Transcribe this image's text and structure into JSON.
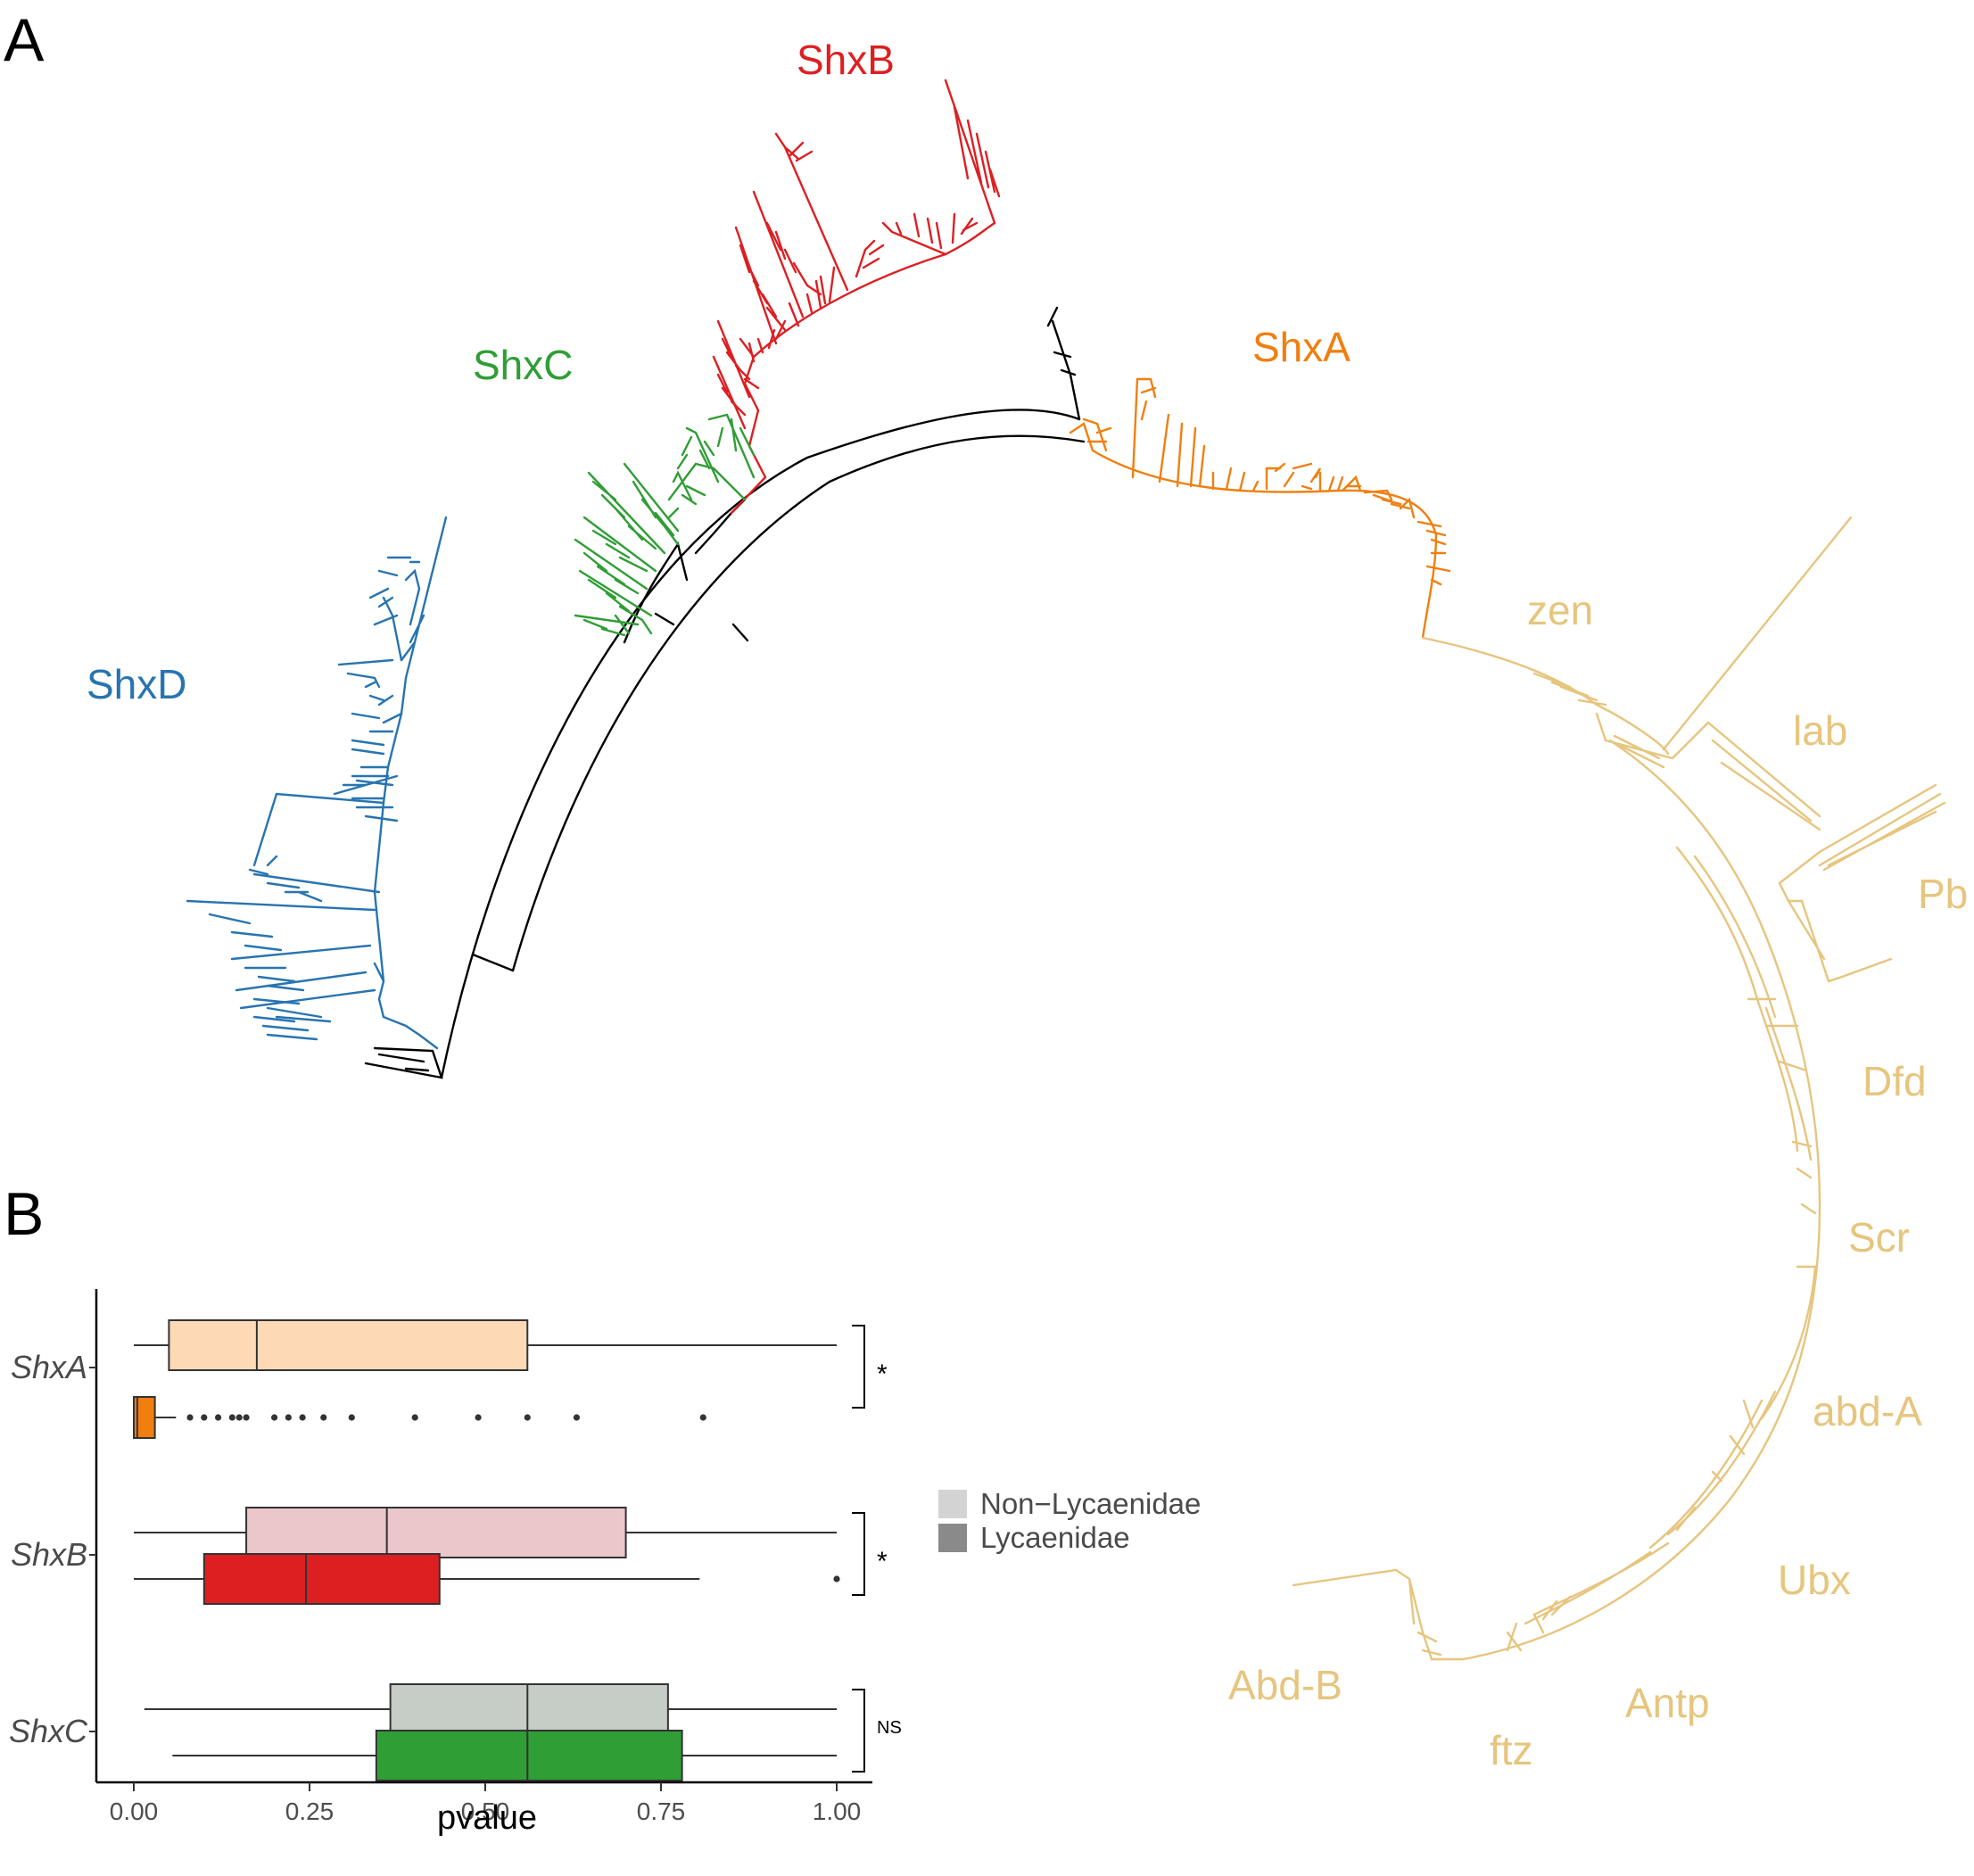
{
  "panels": {
    "a": {
      "letter": "A"
    },
    "b": {
      "letter": "B"
    }
  },
  "tree": {
    "colors": {
      "ShxA": "#f07f0f",
      "ShxB": "#dd1f22",
      "ShxC": "#2f9e35",
      "ShxD": "#2874b0",
      "hox": "#e6c57e",
      "backbone": "#000000"
    },
    "clade_labels": [
      {
        "key": "ShxB",
        "text": "ShxB"
      },
      {
        "key": "ShxC",
        "text": "ShxC"
      },
      {
        "key": "ShxA",
        "text": "ShxA"
      },
      {
        "key": "ShxD",
        "text": "ShxD"
      }
    ],
    "hox_labels": [
      "zen",
      "lab",
      "Pb",
      "Dfd",
      "Scr",
      "abd-A",
      "Ubx",
      "Antp",
      "ftz",
      "Abd-B"
    ]
  },
  "chart_data": {
    "type": "boxplot",
    "orientation": "horizontal",
    "xlabel": "pvalue",
    "ylabel": "",
    "xlim": [
      0,
      1
    ],
    "xticks": [
      0,
      0.25,
      0.5,
      0.75,
      1
    ],
    "xtick_labels": [
      "0.00",
      "0.25",
      "0.50",
      "0.75",
      "1.00"
    ],
    "grid": false,
    "legend": {
      "position": "right",
      "entries": [
        {
          "label": "Non−Lycaenidae",
          "color": "#d3d3d3"
        },
        {
          "label": "Lycaenidae",
          "color": "#8a8a8a"
        }
      ]
    },
    "groups": [
      {
        "gene": "ShxA",
        "significance": "*",
        "boxes": [
          {
            "series": "Non−Lycaenidae",
            "color": "#fdd9b6",
            "whisker_low": 0.0,
            "q1": 0.05,
            "median": 0.175,
            "q3": 0.56,
            "whisker_high": 1.0,
            "outliers": []
          },
          {
            "series": "Lycaenidae",
            "color": "#f07f0f",
            "whisker_low": 0.0,
            "q1": 0.0,
            "median": 0.005,
            "q3": 0.03,
            "whisker_high": 0.06,
            "outliers": [
              0.08,
              0.1,
              0.12,
              0.14,
              0.15,
              0.16,
              0.2,
              0.22,
              0.24,
              0.27,
              0.31,
              0.4,
              0.49,
              0.56,
              0.63,
              0.81
            ]
          }
        ]
      },
      {
        "gene": "ShxB",
        "significance": "*",
        "boxes": [
          {
            "series": "Non−Lycaenidae",
            "color": "#ebc6cb",
            "whisker_low": 0.0,
            "q1": 0.16,
            "median": 0.36,
            "q3": 0.7,
            "whisker_high": 1.0,
            "outliers": []
          },
          {
            "series": "Lycaenidae",
            "color": "#dd1f22",
            "whisker_low": 0.0,
            "q1": 0.1,
            "median": 0.245,
            "q3": 0.435,
            "whisker_high": 0.805,
            "outliers": [
              1.0
            ]
          }
        ]
      },
      {
        "gene": "ShxC",
        "significance": "NS",
        "boxes": [
          {
            "series": "Non−Lycaenidae",
            "color": "#c6ccc6",
            "whisker_low": 0.015,
            "q1": 0.365,
            "median": 0.56,
            "q3": 0.76,
            "whisker_high": 1.0,
            "outliers": []
          },
          {
            "series": "Lycaenidae",
            "color": "#2f9e35",
            "whisker_low": 0.055,
            "q1": 0.345,
            "median": 0.56,
            "q3": 0.78,
            "whisker_high": 1.0,
            "outliers": []
          }
        ]
      }
    ]
  }
}
